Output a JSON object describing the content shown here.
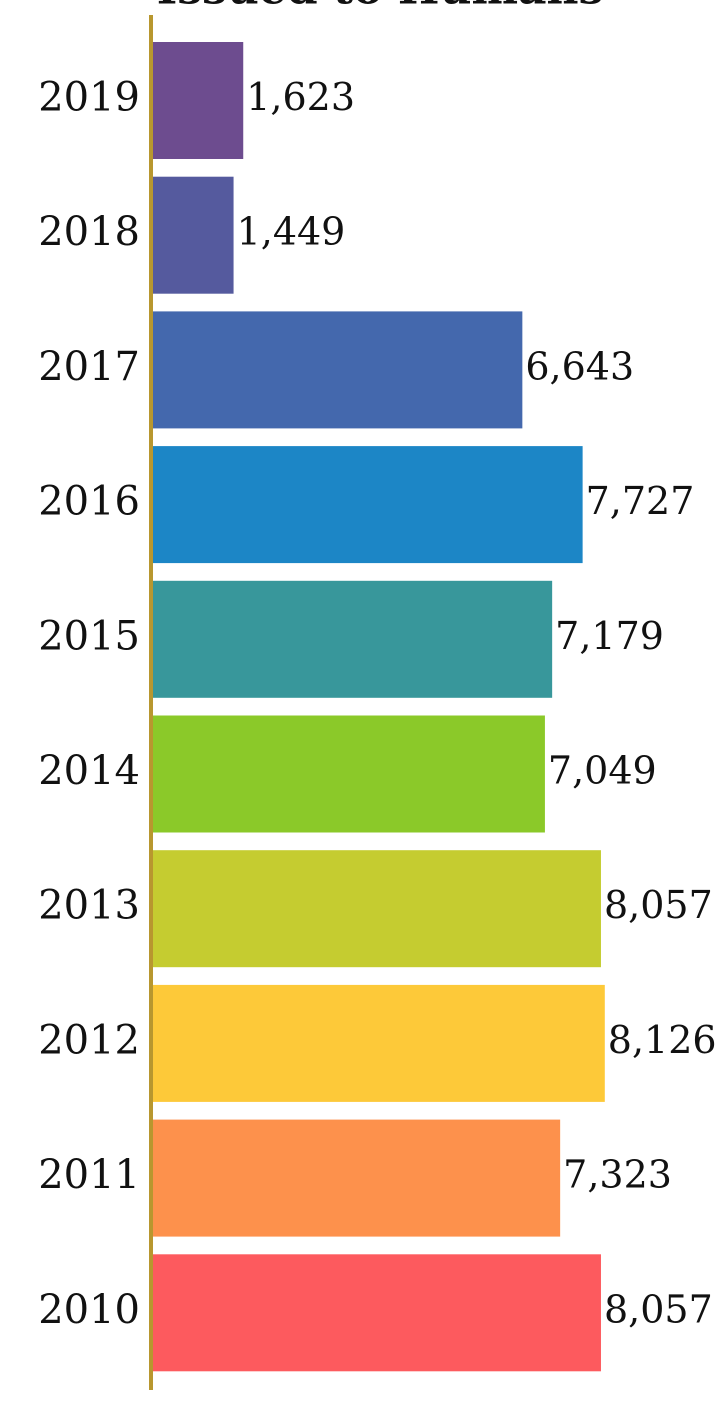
{
  "chart_data": {
    "type": "bar",
    "orientation": "horizontal",
    "title": "Issued to Humans",
    "categories": [
      "2019",
      "2018",
      "2017",
      "2016",
      "2015",
      "2014",
      "2013",
      "2012",
      "2011",
      "2010"
    ],
    "values": [
      1623,
      1449,
      6643,
      7727,
      7179,
      7049,
      8057,
      8126,
      7323,
      8057
    ],
    "value_labels": [
      "1,623",
      "1,449",
      "6,643",
      "7,727",
      "7,179",
      "7,049",
      "8,057",
      "8,126",
      "7,323",
      "8,057"
    ],
    "colors": [
      "#6d4c8f",
      "#555a9e",
      "#4468ad",
      "#1c86c6",
      "#38979b",
      "#8bc929",
      "#c5cc30",
      "#fdc939",
      "#fd914c",
      "#fd5a5e"
    ],
    "xlim": [
      0,
      10000
    ]
  }
}
